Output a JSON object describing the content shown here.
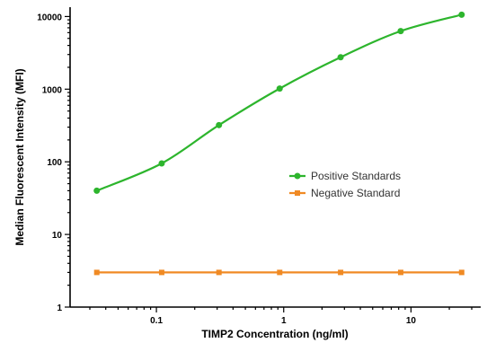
{
  "chart_data": {
    "type": "scatter",
    "xlabel": "TIMP2 Concentration (ng/ml)",
    "ylabel": "Median Fluorescent Intensity (MFI)",
    "xscale": "log",
    "yscale": "log",
    "xlim": [
      0.03,
      30
    ],
    "ylim": [
      1,
      12000
    ],
    "x_ticks": [
      0.1,
      1,
      10
    ],
    "x_tick_labels": [
      "0.1",
      "1",
      "10"
    ],
    "y_ticks": [
      1,
      10,
      100,
      1000,
      10000
    ],
    "y_tick_labels": [
      "1",
      "10",
      "100",
      "1000",
      "10000"
    ],
    "grid": false,
    "legend_position": "center-right",
    "series": [
      {
        "name": "Positive Standards",
        "color": "#2db52d",
        "marker": "circle",
        "fit": "curve",
        "x": [
          0.034,
          0.11,
          0.31,
          0.93,
          2.8,
          8.3,
          25
        ],
        "y": [
          40,
          95,
          320,
          1020,
          2750,
          6300,
          10600
        ]
      },
      {
        "name": "Negative Standard",
        "color": "#f08a24",
        "marker": "square",
        "fit": "line",
        "x": [
          0.034,
          0.11,
          0.31,
          0.93,
          2.8,
          8.3,
          25
        ],
        "y": [
          3,
          3,
          3,
          3,
          3,
          3,
          3
        ]
      }
    ]
  }
}
